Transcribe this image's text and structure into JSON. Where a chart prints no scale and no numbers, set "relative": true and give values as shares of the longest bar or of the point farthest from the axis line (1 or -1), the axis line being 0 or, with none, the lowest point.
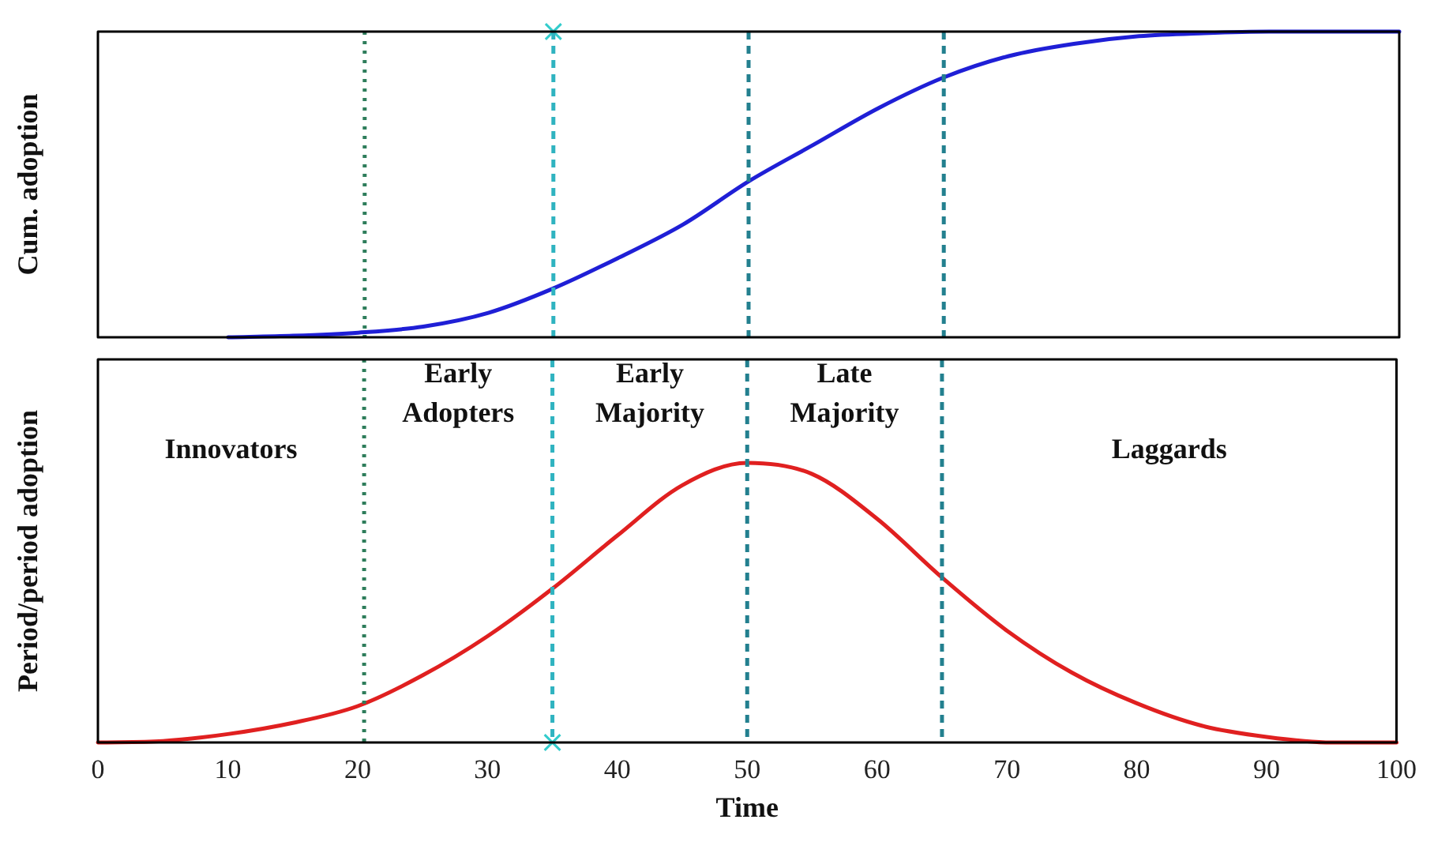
{
  "chart_data": [
    {
      "type": "line",
      "ylabel": "Cum. adoption",
      "relative": true,
      "x": [
        10,
        15,
        20,
        25,
        30,
        35,
        40,
        45,
        50,
        55,
        60,
        65,
        70,
        75,
        80,
        85,
        90,
        95,
        100
      ],
      "xlim": [
        0,
        100
      ],
      "xticks": [
        0,
        10,
        20,
        30,
        40,
        50,
        60,
        70,
        80,
        90,
        100
      ],
      "tick_labels": false,
      "grid": false,
      "legend": false,
      "series": [
        {
          "color": "#1f1fd6",
          "values": [
            0,
            0.005,
            0.015,
            0.035,
            0.08,
            0.16,
            0.26,
            0.37,
            0.51,
            0.63,
            0.75,
            0.85,
            0.92,
            0.96,
            0.985,
            0.995,
            1,
            1,
            1
          ]
        },
        {
          "type": "scatter",
          "x": [
            35
          ],
          "values": [
            1
          ],
          "color": "#33cccc",
          "marker": "cross"
        }
      ],
      "ref_lines": [
        {
          "axis": "x",
          "value": 20.5,
          "color": "#2e7d5b",
          "line_style": "dotted"
        },
        {
          "axis": "x",
          "value": 35,
          "color": "#2fb3c0",
          "line_style": "dashed"
        },
        {
          "axis": "x",
          "value": 50,
          "color": "#23808f",
          "line_style": "dashed"
        },
        {
          "axis": "x",
          "value": 65,
          "color": "#23808f",
          "line_style": "dashed"
        }
      ]
    },
    {
      "type": "line",
      "ylabel": "Period/period adoption",
      "xlabel": "Time",
      "relative": true,
      "x": [
        0,
        5,
        10,
        15,
        20,
        25,
        30,
        35,
        40,
        45,
        50,
        55,
        60,
        65,
        70,
        75,
        80,
        85,
        90,
        95,
        100
      ],
      "xlim": [
        0,
        100
      ],
      "xticks": [
        0,
        10,
        20,
        30,
        40,
        50,
        60,
        70,
        80,
        90,
        100
      ],
      "tick_labels": "x",
      "grid": false,
      "legend": false,
      "series": [
        {
          "color": "#e02020",
          "values": [
            0,
            0.005,
            0.03,
            0.07,
            0.13,
            0.24,
            0.38,
            0.55,
            0.74,
            0.92,
            1,
            0.96,
            0.8,
            0.59,
            0.4,
            0.25,
            0.14,
            0.06,
            0.02,
            0,
            0
          ]
        },
        {
          "type": "scatter",
          "x": [
            35
          ],
          "values": [
            0
          ],
          "color": "#33cccc",
          "marker": "cross"
        }
      ],
      "ref_lines": [
        {
          "axis": "x",
          "value": 20.5,
          "color": "#2e7d5b",
          "line_style": "dotted"
        },
        {
          "axis": "x",
          "value": 35,
          "color": "#2fb3c0",
          "line_style": "dashed"
        },
        {
          "axis": "x",
          "value": 50,
          "color": "#23808f",
          "line_style": "dashed"
        },
        {
          "axis": "x",
          "value": 65,
          "color": "#23808f",
          "line_style": "dashed"
        }
      ],
      "annotations": [
        "Innovators",
        "Early\nAdopters",
        "Early\nMajority",
        "Late\nMajority",
        "Laggards"
      ]
    }
  ]
}
